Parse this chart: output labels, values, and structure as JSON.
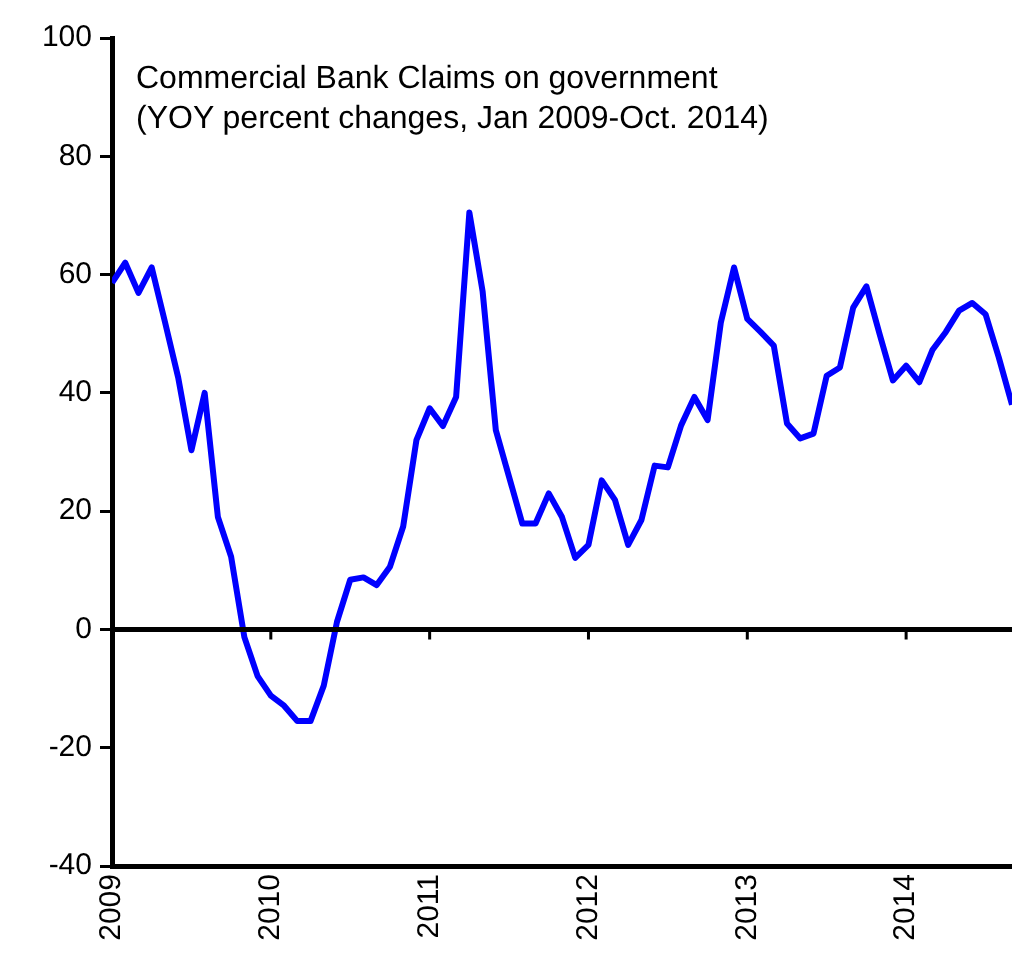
{
  "chart_data": {
    "type": "line",
    "title": "Commercial Bank Claims on government",
    "subtitle": "(YOY percent changes, Jan 2009-Oct. 2014)",
    "x": [
      "2009-01",
      "2009-02",
      "2009-03",
      "2009-04",
      "2009-05",
      "2009-06",
      "2009-07",
      "2009-08",
      "2009-09",
      "2009-10",
      "2009-11",
      "2009-12",
      "2010-01",
      "2010-02",
      "2010-03",
      "2010-04",
      "2010-05",
      "2010-06",
      "2010-07",
      "2010-08",
      "2010-09",
      "2010-10",
      "2010-11",
      "2010-12",
      "2011-01",
      "2011-02",
      "2011-03",
      "2011-04",
      "2011-05",
      "2011-06",
      "2011-07",
      "2011-08",
      "2011-09",
      "2011-10",
      "2011-11",
      "2011-12",
      "2012-01",
      "2012-02",
      "2012-03",
      "2012-04",
      "2012-05",
      "2012-06",
      "2012-07",
      "2012-08",
      "2012-09",
      "2012-10",
      "2012-11",
      "2012-12",
      "2013-01",
      "2013-02",
      "2013-03",
      "2013-04",
      "2013-05",
      "2013-06",
      "2013-07",
      "2013-08",
      "2013-09",
      "2013-10",
      "2013-11",
      "2013-12",
      "2014-01",
      "2014-02",
      "2014-03",
      "2014-04",
      "2014-05",
      "2014-06",
      "2014-07",
      "2014-08",
      "2014-09"
    ],
    "series": [
      {
        "color": "#0000ff",
        "values": [
          58.6,
          62,
          56.9,
          61.2,
          52,
          42.6,
          30.3,
          40,
          19,
          12.3,
          -1.3,
          -7.9,
          -11.2,
          -12.9,
          -15.5,
          -15.5,
          -9.5,
          1.3,
          8.4,
          8.8,
          7.5,
          10.6,
          17.4,
          32,
          37.4,
          34.4,
          39.3,
          70.5,
          57.2,
          33.7,
          25.8,
          17.9,
          17.9,
          23,
          19,
          12.1,
          14.3,
          25.2,
          21.9,
          14.3,
          18.5,
          27.7,
          27.4,
          34.5,
          39.3,
          35.4,
          51.9,
          61.2,
          52.5,
          50.3,
          48,
          34.8,
          32.3,
          33.1,
          42.9,
          44.3,
          54.4,
          58,
          49.9,
          42.1,
          44.6,
          41.8,
          47.3,
          50.3,
          53.9,
          55.2,
          53.3,
          46,
          38
        ]
      }
    ],
    "xlim": [
      "2009-01",
      "2014-09"
    ],
    "xticks": [
      "2009",
      "2010",
      "2011",
      "2012",
      "2013",
      "2014"
    ],
    "ylim": [
      -40,
      100
    ],
    "yticks": [
      -40,
      -20,
      0,
      20,
      40,
      60,
      80,
      100
    ],
    "ref_lines": [
      {
        "axis": "y",
        "value": 0,
        "color": "#000000"
      }
    ],
    "legend": false,
    "marker": "none",
    "line_style": "solid"
  }
}
